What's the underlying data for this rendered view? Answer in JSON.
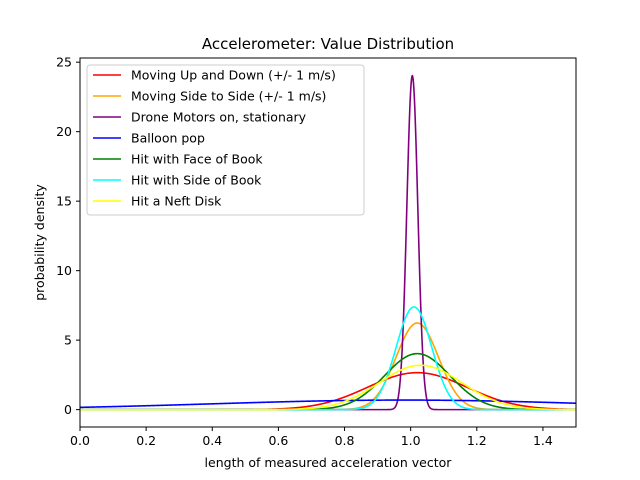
{
  "chart_data": {
    "type": "line",
    "title": "Accelerometer: Value Distribution",
    "xlabel": "length of measured acceleration vector",
    "ylabel": "probability density",
    "xlim": [
      0.0,
      1.5
    ],
    "ylim": [
      -1.25,
      25.3
    ],
    "xticks": [
      0.0,
      0.2,
      0.4,
      0.6,
      0.8,
      1.0,
      1.2,
      1.4
    ],
    "xtick_labels": [
      "0.0",
      "0.2",
      "0.4",
      "0.6",
      "0.8",
      "1.0",
      "1.2",
      "1.4"
    ],
    "yticks": [
      0,
      5,
      10,
      15,
      20,
      25
    ],
    "ytick_labels": [
      "0",
      "5",
      "10",
      "15",
      "20",
      "25"
    ],
    "grid": false,
    "legend_position": "top-left",
    "series": [
      {
        "name": "Moving Up and Down (+/- 1 m/s)",
        "color": "#ff0000",
        "mean": 1.02,
        "std": 0.15
      },
      {
        "name": "Moving Side to Side (+/- 1 m/s)",
        "color": "#ffa500",
        "mean": 1.02,
        "std": 0.064
      },
      {
        "name": "Drone Motors on, stationary",
        "color": "#800080",
        "mean": 1.005,
        "std": 0.0166
      },
      {
        "name": "Balloon pop",
        "color": "#0000ff",
        "mean": 0.98,
        "std": 0.58
      },
      {
        "name": "Hit with Face of Book",
        "color": "#008000",
        "mean": 1.02,
        "std": 0.099
      },
      {
        "name": "Hit with Side of Book",
        "color": "#00ffff",
        "mean": 1.01,
        "std": 0.054
      },
      {
        "name": "Hit a Neft Disk",
        "color": "#ffff00",
        "mean": 1.03,
        "std": 0.125
      }
    ]
  }
}
